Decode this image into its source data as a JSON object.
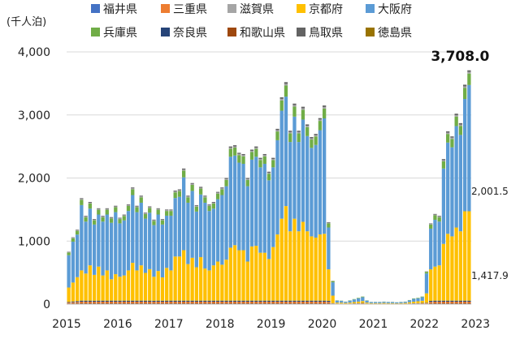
{
  "chart_data": {
    "type": "bar",
    "stacked": true,
    "unit_label": "(千人泊)",
    "x_tick_labels": [
      "2015",
      "2016",
      "2017",
      "2018",
      "2019",
      "2020",
      "2021",
      "2022",
      "2023"
    ],
    "y_ticks": [
      "0",
      "1,000",
      "2,000",
      "3,000",
      "4,000"
    ],
    "ylim": [
      0,
      4000
    ],
    "grid": true,
    "legend_position": "top",
    "series_order": [
      "福井県",
      "三重県",
      "滋賀県",
      "京都府",
      "大阪府",
      "兵庫県",
      "奈良県",
      "和歌山県",
      "鳥取県",
      "徳島県"
    ],
    "series_colors": {
      "福井県": "#4472c4",
      "三重県": "#ed7d31",
      "滋賀県": "#a5a5a5",
      "京都府": "#ffc000",
      "大阪府": "#5b9bd5",
      "兵庫県": "#70ad47",
      "奈良県": "#264478",
      "和歌山県": "#9e480e",
      "鳥取県": "#636363",
      "徳島県": "#997300"
    },
    "start_month": "2015-01",
    "totals": [
      830,
      1060,
      1180,
      1680,
      1400,
      1620,
      1350,
      1520,
      1400,
      1520,
      1380,
      1560,
      1370,
      1420,
      1580,
      1850,
      1560,
      1720,
      1450,
      1550,
      1340,
      1520,
      1350,
      1500,
      1500,
      1800,
      1820,
      2150,
      1720,
      1920,
      1570,
      1860,
      1720,
      1580,
      1620,
      1780,
      1850,
      2000,
      2500,
      2520,
      2400,
      2380,
      2000,
      2450,
      2500,
      2320,
      2380,
      2100,
      2320,
      2780,
      3280,
      3520,
      2750,
      3180,
      2750,
      3130,
      2850,
      2650,
      2700,
      2950,
      3150,
      1300,
      370,
      60,
      55,
      40,
      60,
      80,
      100,
      120,
      60,
      35,
      35,
      35,
      40,
      35,
      35,
      30,
      35,
      40,
      65,
      90,
      100,
      120,
      520,
      1280,
      1430,
      1400,
      2300,
      2740,
      2660,
      3020,
      2870,
      3480,
      3708
    ],
    "kyoto": [
      230,
      300,
      380,
      480,
      430,
      560,
      410,
      540,
      400,
      480,
      340,
      420,
      380,
      400,
      480,
      600,
      480,
      560,
      440,
      500,
      380,
      470,
      370,
      520,
      480,
      700,
      700,
      800,
      580,
      680,
      530,
      690,
      510,
      480,
      560,
      620,
      570,
      650,
      840,
      880,
      800,
      800,
      620,
      860,
      870,
      760,
      760,
      660,
      850,
      1050,
      1300,
      1500,
      1100,
      1300,
      1100,
      1250,
      1100,
      1020,
      1000,
      1050,
      1060,
      500,
      120,
      15,
      15,
      12,
      15,
      20,
      25,
      30,
      15,
      10,
      10,
      10,
      12,
      10,
      10,
      8,
      10,
      12,
      20,
      25,
      30,
      35,
      150,
      500,
      540,
      560,
      900,
      1060,
      1020,
      1160,
      1100,
      1417.9,
      1417.9
    ],
    "osaka_latest": 2001.5,
    "annotations": [
      "3,708.0",
      "2,001.5",
      "1,417.9"
    ]
  }
}
